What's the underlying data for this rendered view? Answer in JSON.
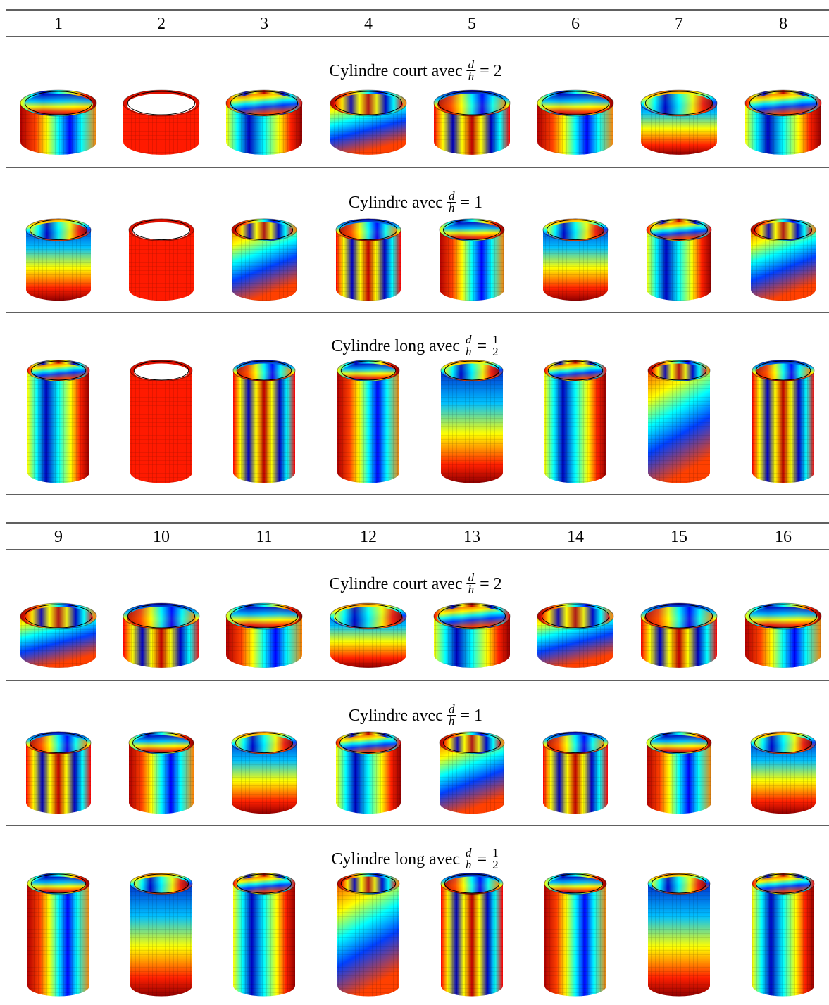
{
  "tables": [
    {
      "columns": [
        "1",
        "2",
        "3",
        "4",
        "5",
        "6",
        "7",
        "8"
      ],
      "sections": [
        {
          "label": "Cylindre court avec",
          "num": "d",
          "den": "h",
          "equals": "=",
          "rhs": "2"
        },
        {
          "label": "Cylindre avec",
          "num": "d",
          "den": "h",
          "equals": "=",
          "rhs": "1"
        },
        {
          "label": "Cylindre long avec",
          "num": "d",
          "den": "h",
          "equals": "=",
          "rhs_num": "1",
          "rhs_den": "2"
        }
      ]
    },
    {
      "columns": [
        "9",
        "10",
        "11",
        "12",
        "13",
        "14",
        "15",
        "16"
      ],
      "sections": [
        {
          "label": "Cylindre court avec",
          "num": "d",
          "den": "h",
          "equals": "=",
          "rhs": "2"
        },
        {
          "label": "Cylindre avec",
          "num": "d",
          "den": "h",
          "equals": "=",
          "rhs": "1"
        },
        {
          "label": "Cylindre long avec",
          "num": "d",
          "den": "h",
          "equals": "=",
          "rhs_num": "1",
          "rhs_den": "2"
        }
      ]
    }
  ]
}
